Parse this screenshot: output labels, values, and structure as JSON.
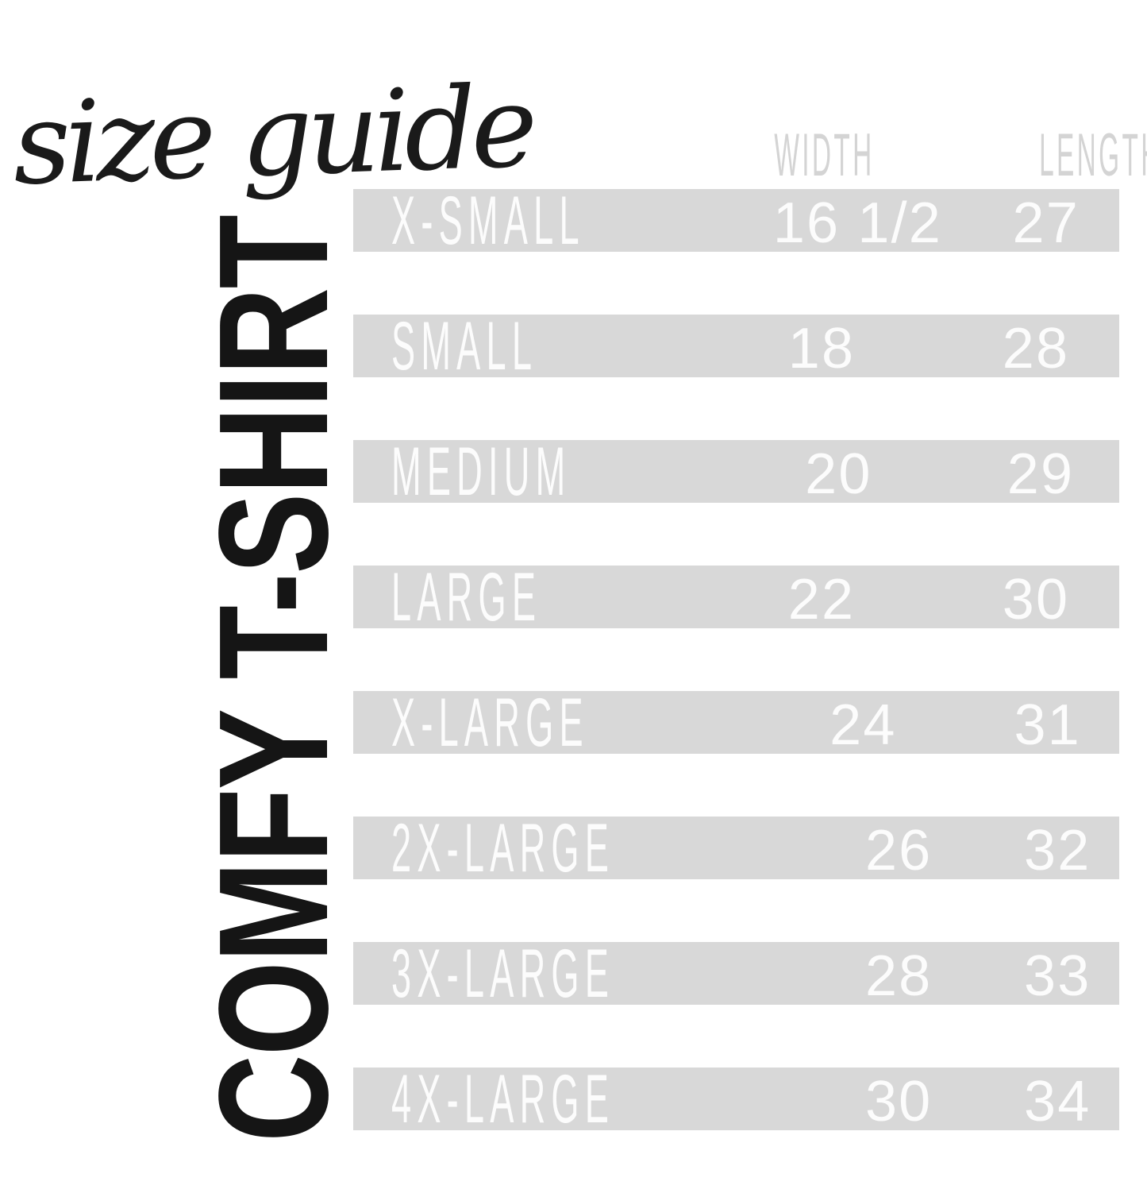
{
  "title": {
    "script": "size guide"
  },
  "product": {
    "name": "COMFY T-SHIRT"
  },
  "table": {
    "col_width": "WIDTH",
    "col_length": "LENGTH",
    "rows": [
      {
        "size": "X-SMALL",
        "width": "16 1/2",
        "length": "27"
      },
      {
        "size": "SMALL",
        "width": "18",
        "length": "28"
      },
      {
        "size": "MEDIUM",
        "width": "20",
        "length": "29"
      },
      {
        "size": "LARGE",
        "width": "22",
        "length": "30"
      },
      {
        "size": "X-LARGE",
        "width": "24",
        "length": "31"
      },
      {
        "size": "2X-LARGE",
        "width": "26",
        "length": "32"
      },
      {
        "size": "3X-LARGE",
        "width": "28",
        "length": "33"
      },
      {
        "size": "4X-LARGE",
        "width": "30",
        "length": "34"
      }
    ]
  },
  "colors": {
    "row_background": "#d8d8d8",
    "header_text": "#d4d4d4",
    "row_text": "#fcfcfc",
    "ink": "#1a1a1a"
  },
  "chart_data": {
    "type": "table",
    "title": "size guide",
    "subtitle": "COMFY T-SHIRT",
    "columns": [
      "",
      "WIDTH",
      "LENGTH"
    ],
    "rows": [
      [
        "X-SMALL",
        "16 1/2",
        "27"
      ],
      [
        "SMALL",
        "18",
        "28"
      ],
      [
        "MEDIUM",
        "20",
        "29"
      ],
      [
        "LARGE",
        "22",
        "30"
      ],
      [
        "X-LARGE",
        "24",
        "31"
      ],
      [
        "2X-LARGE",
        "26",
        "32"
      ],
      [
        "3X-LARGE",
        "28",
        "33"
      ],
      [
        "4X-LARGE",
        "30",
        "34"
      ]
    ],
    "width_values_numeric": [
      16.5,
      18,
      20,
      22,
      24,
      26,
      28,
      30
    ],
    "length_values_numeric": [
      27,
      28,
      29,
      30,
      31,
      32,
      33,
      34
    ]
  }
}
